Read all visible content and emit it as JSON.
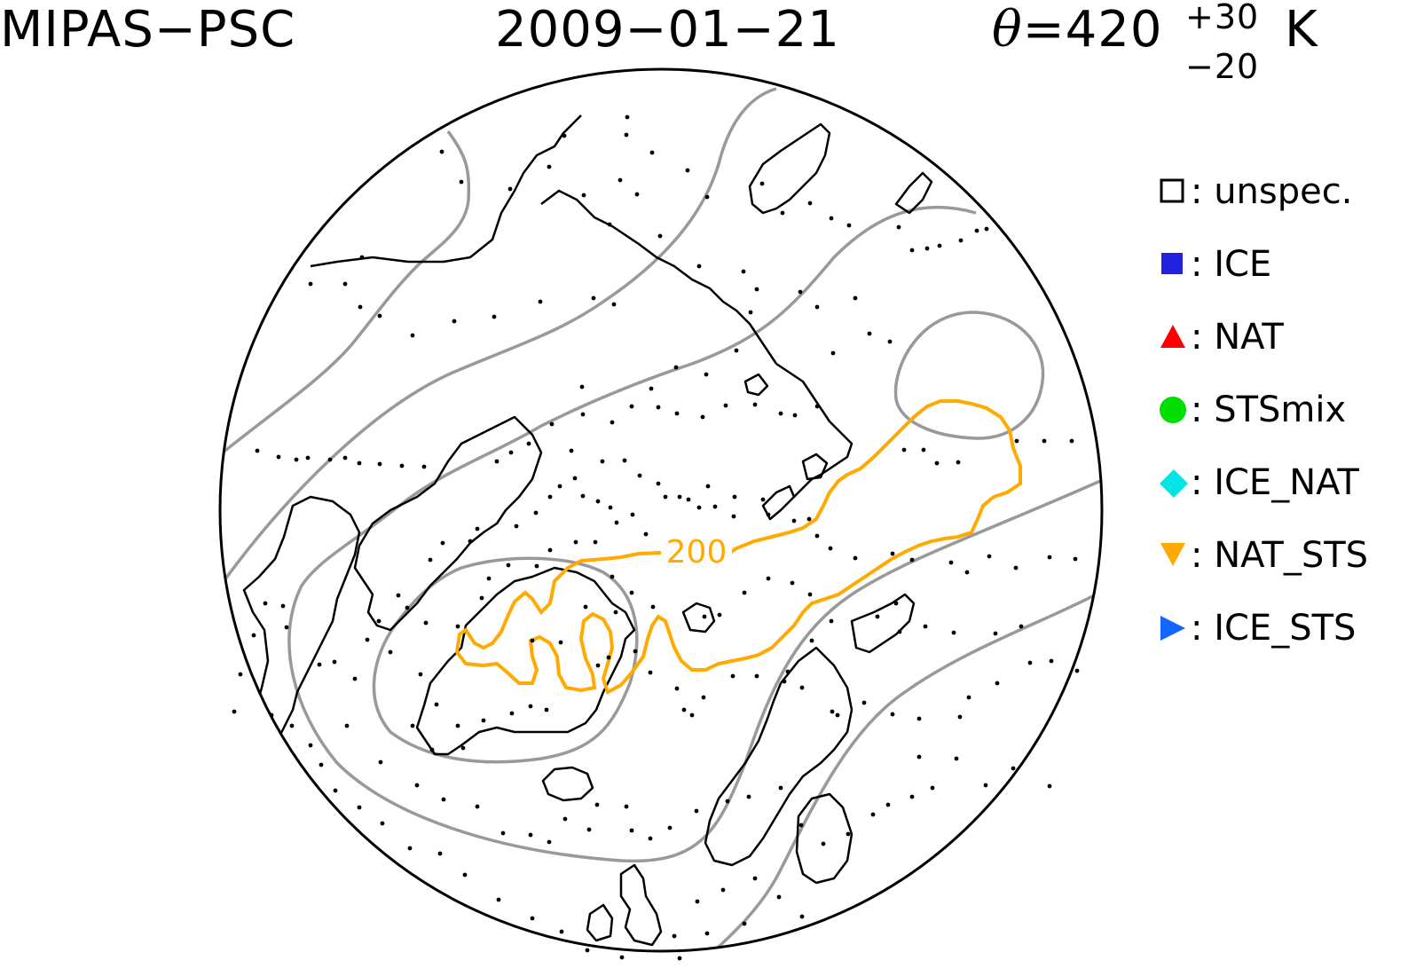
{
  "header": {
    "instrument": "MIPAS−PSC",
    "date": "2009−01−21",
    "theta_symbol": "θ",
    "theta_eq": "=420",
    "theta_plus": "+30",
    "theta_minus": "−20",
    "theta_unit": "K"
  },
  "contour_label": "200",
  "colors": {
    "coastline": "#000000",
    "geopotential_contours": "#999999",
    "temperature_contour": "#ffaa00",
    "ICE": "#2222dd",
    "NAT": "#ff0000",
    "STSmix": "#00dd00",
    "ICE_NAT": "#00e5e5",
    "NAT_STS": "#ffaa00",
    "ICE_STS": "#1166ff"
  },
  "legend": [
    {
      "symbol": "open-square-icon",
      "color": "#000000",
      "label": "unspec."
    },
    {
      "symbol": "filled-square-icon",
      "color": "#2222dd",
      "label": "ICE"
    },
    {
      "symbol": "triangle-up-icon",
      "color": "#ff0000",
      "label": "NAT"
    },
    {
      "symbol": "circle-icon",
      "color": "#00dd00",
      "label": "STSmix"
    },
    {
      "symbol": "diamond-icon",
      "color": "#00e5e5",
      "label": "ICE_NAT"
    },
    {
      "symbol": "triangle-down-icon",
      "color": "#ffaa00",
      "label": "NAT_STS"
    },
    {
      "symbol": "triangle-right-icon",
      "color": "#1166ff",
      "label": "ICE_STS"
    }
  ],
  "map": {
    "projection": "north-polar-stereographic",
    "observations_class": "unspec."
  }
}
